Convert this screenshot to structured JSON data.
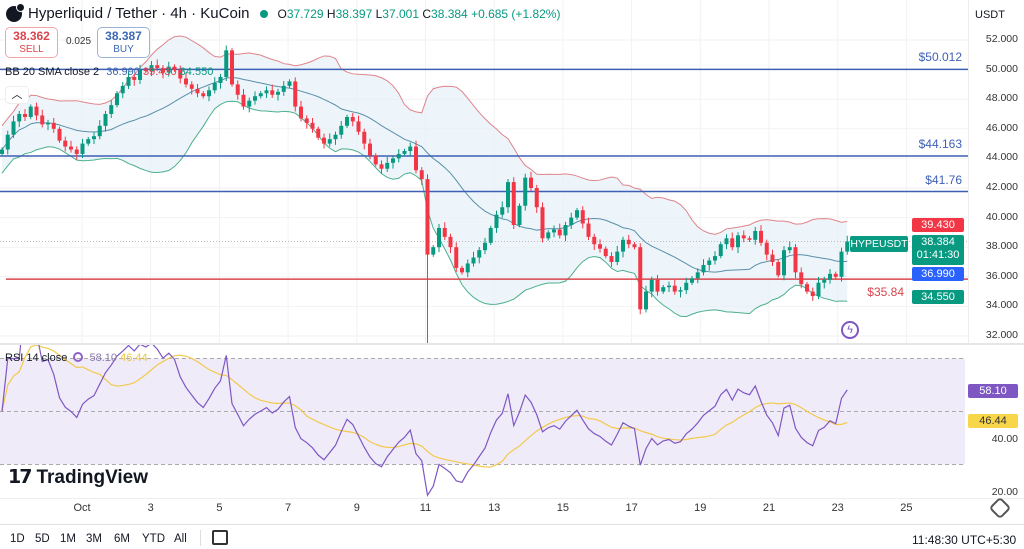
{
  "header": {
    "symbol_title": "Hyperliquid / Tether · 4h · KuCoin",
    "open_label": "O",
    "open": "37.729",
    "high_label": "H",
    "high": "38.397",
    "low_label": "L",
    "low": "37.001",
    "close_label": "C",
    "close": "38.384",
    "change": "+0.685 (+1.82%)",
    "currency": "USDT"
  },
  "trade": {
    "sell_price": "38.362",
    "sell_label": "SELL",
    "spread": "0.025",
    "buy_price": "38.387",
    "buy_label": "BUY"
  },
  "bb_legend": {
    "label": "BB 20 SMA close 2",
    "basis": "36.990",
    "upper": "39.430",
    "lower": "34.550"
  },
  "rsi_legend": {
    "label": "RSI 14 close",
    "rsi": "58.10",
    "ma": "46.44"
  },
  "price_axis": [
    "52.000",
    "50.000",
    "48.000",
    "46.000",
    "44.000",
    "42.000",
    "40.000",
    "38.000",
    "36.000",
    "34.000",
    "32.000"
  ],
  "rsi_axis": [
    "40.00",
    "20.00"
  ],
  "x_axis": [
    "Oct",
    "3",
    "5",
    "7",
    "9",
    "11",
    "13",
    "15",
    "17",
    "19",
    "21",
    "23",
    "25"
  ],
  "levels": [
    {
      "label": "$50.012",
      "price": 50.012,
      "color": "#3d5fb4"
    },
    {
      "label": "$44.163",
      "price": 44.163,
      "color": "#3d5fb4"
    },
    {
      "label": "$41.76",
      "price": 41.76,
      "color": "#3d5fb4"
    },
    {
      "label": "$35.84",
      "price": 35.84,
      "color": "#d9454c"
    }
  ],
  "tags": {
    "upper": "39.430",
    "symbol": "HYPEUSDT",
    "last": "38.384",
    "countdown": "01:41:30",
    "basis": "36.990",
    "lower": "34.550",
    "rsi": "58.10",
    "rsi_ma": "46.44"
  },
  "timeframes": [
    "1D",
    "5D",
    "1M",
    "3M",
    "6M",
    "YTD",
    "All"
  ],
  "clock": "11:48:30 UTC+5:30",
  "brand": "TradingView",
  "colors": {
    "up": "#089981",
    "down": "#f23645",
    "bb_upper": "#e0848a",
    "bb_basis": "#5a8fa8",
    "bb_lower": "#4caf8c",
    "rsi": "#7e57c2",
    "rsi_ma": "#f2c94c",
    "rsi_band": "#ece6f7"
  },
  "chart_data": {
    "type": "candlestick",
    "timeframe": "4h",
    "ylim": [
      32,
      52
    ],
    "rsi_ylim": [
      20,
      80
    ],
    "last_low_wick": 31.3,
    "closes": [
      44.6,
      45.6,
      46.5,
      47.0,
      46.8,
      47.5,
      46.9,
      46.3,
      46.4,
      46.0,
      45.2,
      44.8,
      44.6,
      44.3,
      45.0,
      45.3,
      45.5,
      46.2,
      47.0,
      47.6,
      48.4,
      48.9,
      49.5,
      49.3,
      50.0,
      49.9,
      50.3,
      50.1,
      49.8,
      50.2,
      50.0,
      49.4,
      49.0,
      48.7,
      48.4,
      48.2,
      48.6,
      49.1,
      49.5,
      51.3,
      49.0,
      48.3,
      47.5,
      47.9,
      48.2,
      48.4,
      48.6,
      48.3,
      48.5,
      48.9,
      49.2,
      47.5,
      46.7,
      46.4,
      46.0,
      45.4,
      45.0,
      45.3,
      45.6,
      46.2,
      46.8,
      46.5,
      45.8,
      45.0,
      44.2,
      43.6,
      43.3,
      43.7,
      44.0,
      44.3,
      44.5,
      44.8,
      43.2,
      42.6,
      37.5,
      38.0,
      39.3,
      38.7,
      38.0,
      36.6,
      36.3,
      36.9,
      37.3,
      37.8,
      38.3,
      39.3,
      40.2,
      40.7,
      42.4,
      39.5,
      40.8,
      42.7,
      42.0,
      40.7,
      38.6,
      39.0,
      39.2,
      38.8,
      39.5,
      40.0,
      40.5,
      39.6,
      38.7,
      38.2,
      37.9,
      37.4,
      37.0,
      37.7,
      38.5,
      38.2,
      38.0,
      33.8,
      35.0,
      35.8,
      35.0,
      35.3,
      35.4,
      35.0,
      35.1,
      35.6,
      35.9,
      36.3,
      36.8,
      37.1,
      37.4,
      38.2,
      38.6,
      38.0,
      38.8,
      38.6,
      38.5,
      39.1,
      38.3,
      37.5,
      37.0,
      36.1,
      37.8,
      38.0,
      36.3,
      35.5,
      35.0,
      34.7,
      35.6,
      35.8,
      36.2,
      36.0,
      37.7,
      38.384
    ],
    "indicators": [
      "BB 20 SMA close 2",
      "RSI 14 close"
    ]
  }
}
